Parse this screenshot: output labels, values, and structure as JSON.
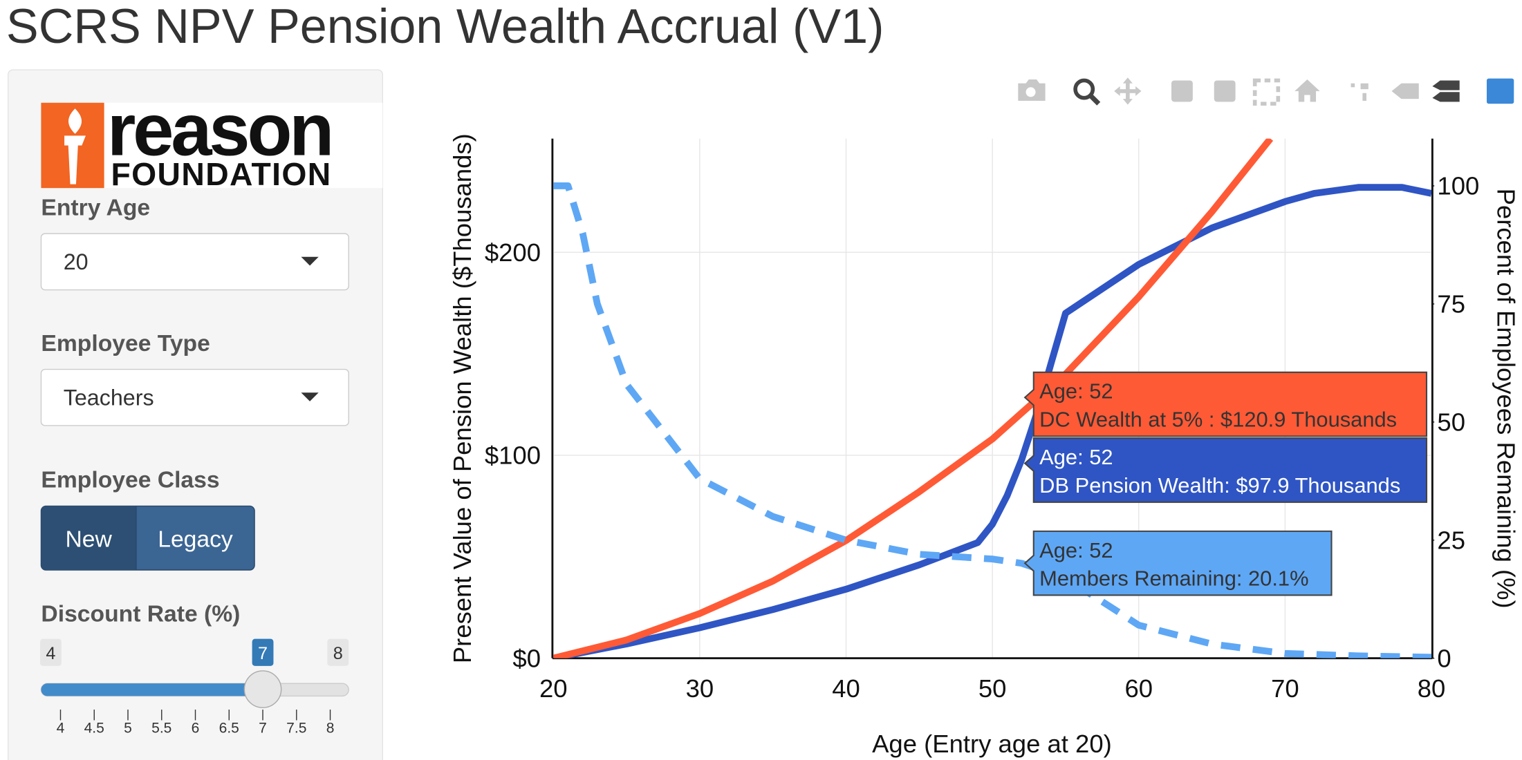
{
  "title": "SCRS NPV Pension Wealth Accrual (V1)",
  "logo": {
    "word": "reason",
    "sub": "FOUNDATION"
  },
  "inputs": {
    "entry_age": {
      "label": "Entry Age",
      "value": "20"
    },
    "employee_type": {
      "label": "Employee Type",
      "value": "Teachers"
    },
    "employee_class": {
      "label": "Employee Class",
      "options": [
        "New",
        "Legacy"
      ]
    },
    "discount_rate": {
      "label": "Discount Rate (%)",
      "min": 4,
      "max": 8,
      "value": 7,
      "ticks": [
        4,
        4.5,
        5,
        5.5,
        6,
        6.5,
        7,
        7.5,
        8
      ]
    }
  },
  "chart_data": {
    "type": "line",
    "xlabel": "Age (Entry age at 20)",
    "ylabel": "Present Value of Pension Wealth ($Thousands)",
    "y2label": "Percent of Employees Remaining (%)",
    "xlim": [
      20,
      80
    ],
    "xticks": [
      20,
      30,
      40,
      50,
      60,
      70,
      80
    ],
    "ylim": [
      0,
      256
    ],
    "yticks": [
      {
        "value": 0,
        "label": "$0"
      },
      {
        "value": 100,
        "label": "$100"
      },
      {
        "value": 200,
        "label": "$200"
      }
    ],
    "y2lim": [
      0,
      110
    ],
    "y2ticks": [
      0,
      25,
      50,
      75,
      100
    ],
    "grid": true,
    "series": [
      {
        "name": "DB Pension Wealth",
        "color": "#2f55c4",
        "dash": false,
        "x": [
          20,
          25,
          30,
          35,
          40,
          45,
          49,
          50,
          51,
          52,
          53,
          54,
          55,
          60,
          65,
          70,
          72,
          75,
          78,
          80
        ],
        "values": [
          0,
          7,
          15,
          24,
          34,
          46,
          57,
          66,
          80,
          97.9,
          120,
          145,
          170,
          194,
          212,
          225,
          229,
          232,
          232,
          229
        ]
      },
      {
        "name": "DC Wealth at 5%",
        "color": "#ff5a36",
        "dash": false,
        "x": [
          20,
          25,
          30,
          35,
          40,
          45,
          50,
          52,
          55,
          60,
          65,
          69
        ],
        "values": [
          0,
          9,
          22,
          38,
          58,
          82,
          108,
          120.9,
          140,
          178,
          220,
          256
        ]
      },
      {
        "name": "Members Remaining",
        "color": "#5ea7f5",
        "dash": true,
        "axis": "y2",
        "x": [
          20,
          21,
          22,
          23,
          25,
          28,
          30,
          35,
          40,
          45,
          50,
          52,
          55,
          58,
          60,
          65,
          70,
          75,
          80
        ],
        "values": [
          100,
          100,
          90,
          75,
          58,
          46,
          38,
          30,
          25,
          22,
          21,
          20.1,
          17,
          11,
          7,
          3,
          1,
          0.5,
          0.2
        ]
      }
    ],
    "hover_labels": [
      {
        "lines": [
          "Age: 52",
          "DC Wealth at 5% : $120.9 Thousands"
        ],
        "color": "#ff5a36",
        "text_color": "#333"
      },
      {
        "lines": [
          "Age: 52",
          "DB Pension Wealth: $97.9 Thousands"
        ],
        "color": "#2f55c4",
        "text_color": "#ffffff"
      },
      {
        "lines": [
          "Age: 52",
          "Members Remaining: 20.1%"
        ],
        "color": "#5ea7f5",
        "text_color": "#333"
      }
    ]
  }
}
